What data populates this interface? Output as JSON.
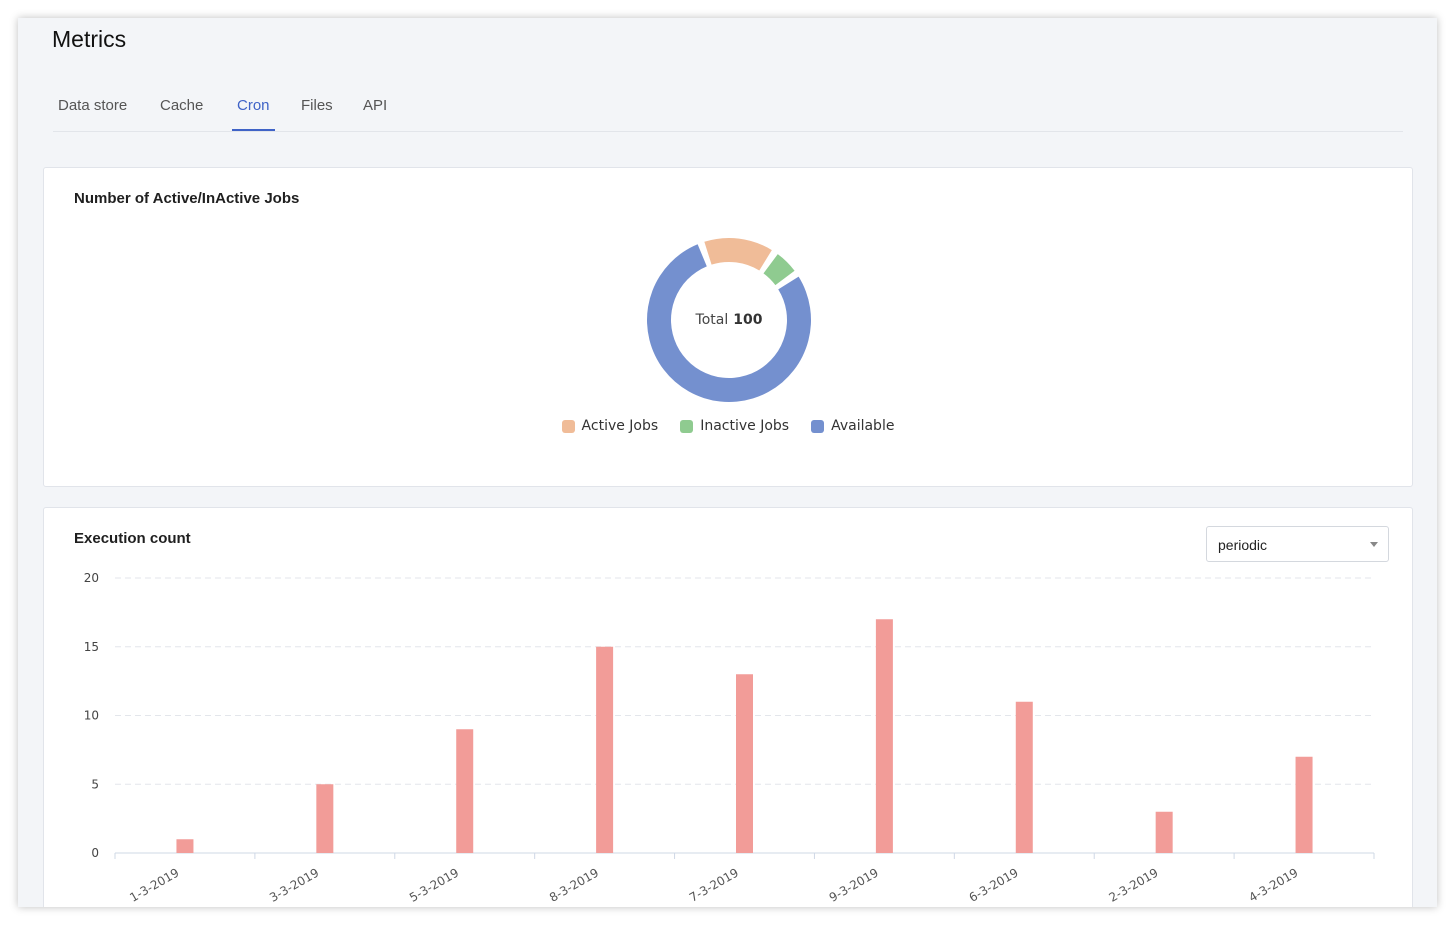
{
  "page": {
    "title": "Metrics"
  },
  "tabs": [
    {
      "label": "Data store"
    },
    {
      "label": "Cache"
    },
    {
      "label": "Cron"
    },
    {
      "label": "Files"
    },
    {
      "label": "API"
    }
  ],
  "active_tab": "Cron",
  "jobs_card": {
    "title": "Number of Active/InActive Jobs",
    "center_label": "Total",
    "center_value": "100",
    "legend": [
      {
        "label": "Active Jobs",
        "color": "#f0bc98"
      },
      {
        "label": "Inactive Jobs",
        "color": "#8fcb90"
      },
      {
        "label": "Available",
        "color": "#7490cf"
      }
    ]
  },
  "execution_card": {
    "title": "Execution count",
    "dropdown": {
      "selected": "periodic",
      "icon": "chevron-down-icon"
    }
  },
  "chart_data": [
    {
      "type": "pie",
      "categories": [
        "Active Jobs",
        "Inactive Jobs",
        "Available"
      ],
      "values": [
        15,
        6,
        79
      ],
      "total": 100,
      "colors": [
        "#f0bc98",
        "#8fcb90",
        "#7490cf"
      ],
      "legend": "bottom"
    },
    {
      "type": "bar",
      "title": "Execution count",
      "categories": [
        "1-3-2019",
        "3-3-2019",
        "5-3-2019",
        "8-3-2019",
        "7-3-2019",
        "9-3-2019",
        "6-3-2019",
        "2-3-2019",
        "4-3-2019"
      ],
      "values": [
        1,
        5,
        9,
        15,
        13,
        17,
        11,
        3,
        7
      ],
      "ylim": [
        0,
        20
      ],
      "yticks": [
        0,
        5,
        10,
        15,
        20
      ],
      "grid": true,
      "color": "#f29c98"
    }
  ]
}
